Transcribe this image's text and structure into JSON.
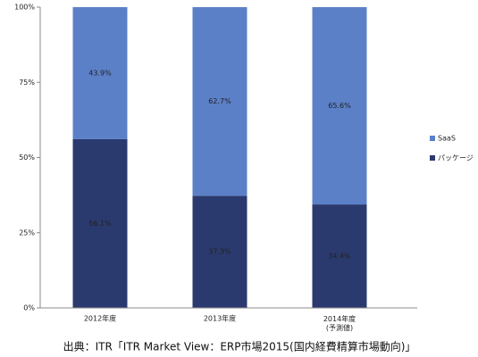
{
  "chart_data": {
    "type": "stacked_bar",
    "categories": [
      "2012年度",
      "2013年度",
      "2014年度\n(予測値)"
    ],
    "series": [
      {
        "name": "パッケージ",
        "color": "#2b3a6e",
        "values": [
          56.1,
          37.3,
          34.4
        ],
        "value_labels": [
          "56.1%",
          "37.3%",
          "34.4%"
        ]
      },
      {
        "name": "SaaS",
        "color": "#5b80c8",
        "values": [
          43.9,
          62.7,
          65.6
        ],
        "value_labels": [
          "43.9%",
          "62.7%",
          "65.6%"
        ]
      }
    ],
    "ylim": [
      0,
      100
    ],
    "yticks": [
      {
        "value": 0,
        "label": "0%"
      },
      {
        "value": 25,
        "label": "25%"
      },
      {
        "value": 50,
        "label": "50%"
      },
      {
        "value": 75,
        "label": "75%"
      },
      {
        "value": 100,
        "label": "100%"
      }
    ],
    "grid": false,
    "legend": "right",
    "source": "出典：ITR「ITR Market View：ERP市場2015(国内経費精算市場動向)」"
  }
}
